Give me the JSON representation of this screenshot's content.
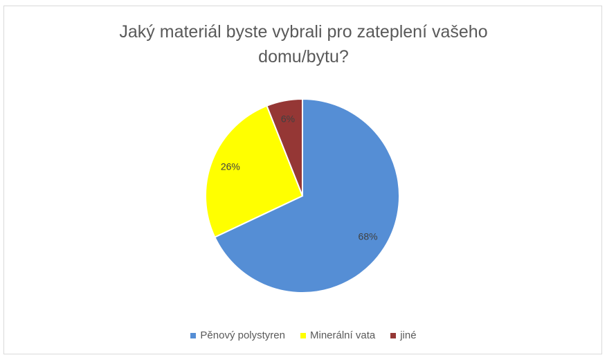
{
  "chart_data": {
    "type": "pie",
    "title": "Jaký materiál byste vybrali pro zateplení vašeho domu/bytu?",
    "categories": [
      "Pěnový polystyren",
      "Minerální vata",
      "jiné"
    ],
    "values": [
      68,
      26,
      6
    ],
    "value_labels": [
      "68%",
      "26%",
      "6%"
    ],
    "colors": [
      "#558ed5",
      "#ffff00",
      "#953735"
    ],
    "legend": "bottom"
  }
}
